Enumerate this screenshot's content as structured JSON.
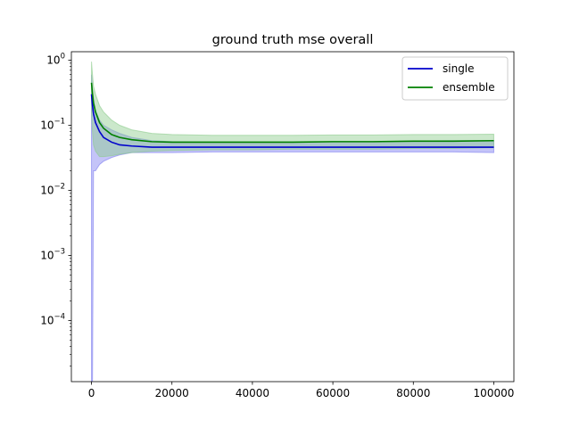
{
  "chart_data": {
    "type": "line",
    "title": "ground truth mse overall",
    "xlabel": "",
    "ylabel": "",
    "xscale": "linear",
    "yscale": "log",
    "xlim": [
      -5000,
      105000
    ],
    "ylim": [
      1.15e-05,
      1.35
    ],
    "grid": false,
    "legend_position": "upper right",
    "x_ticks": [
      0,
      20000,
      40000,
      60000,
      80000,
      100000
    ],
    "x_tick_labels": [
      "0",
      "20000",
      "40000",
      "60000",
      "80000",
      "100000"
    ],
    "y_ticks": [
      0.0001,
      0.001,
      0.01,
      0.1,
      1
    ],
    "y_tick_labels": [
      {
        "base": "10",
        "exp": "−4"
      },
      {
        "base": "10",
        "exp": "−3"
      },
      {
        "base": "10",
        "exp": "−2"
      },
      {
        "base": "10",
        "exp": "−1"
      },
      {
        "base": "10",
        "exp": "0"
      }
    ],
    "x": [
      0,
      250,
      500,
      1000,
      2000,
      3000,
      5000,
      7000,
      10000,
      15000,
      20000,
      30000,
      40000,
      50000,
      60000,
      70000,
      80000,
      90000,
      100000
    ],
    "series": [
      {
        "name": "single",
        "color": "#0000cc",
        "band_color": "#7d7df0",
        "values": [
          0.3,
          0.2,
          0.15,
          0.11,
          0.08,
          0.065,
          0.055,
          0.05,
          0.048,
          0.046,
          0.046,
          0.046,
          0.046,
          0.046,
          0.046,
          0.046,
          0.046,
          0.046,
          0.046
        ],
        "lower": [
          1.15e-05,
          1.15e-05,
          0.02,
          0.02,
          0.025,
          0.028,
          0.032,
          0.035,
          0.038,
          0.038,
          0.038,
          0.039,
          0.039,
          0.039,
          0.039,
          0.039,
          0.039,
          0.039,
          0.038
        ],
        "upper": [
          0.6,
          0.35,
          0.25,
          0.17,
          0.12,
          0.1,
          0.085,
          0.075,
          0.065,
          0.058,
          0.056,
          0.055,
          0.055,
          0.055,
          0.056,
          0.056,
          0.057,
          0.058,
          0.058
        ]
      },
      {
        "name": "ensemble",
        "color": "#008000",
        "band_color": "#8ccc8c",
        "values": [
          0.45,
          0.3,
          0.22,
          0.16,
          0.11,
          0.09,
          0.072,
          0.065,
          0.06,
          0.056,
          0.055,
          0.055,
          0.055,
          0.055,
          0.056,
          0.056,
          0.057,
          0.057,
          0.058
        ],
        "lower": [
          0.15,
          0.08,
          0.05,
          0.04,
          0.033,
          0.033,
          0.034,
          0.036,
          0.038,
          0.04,
          0.041,
          0.042,
          0.042,
          0.043,
          0.043,
          0.043,
          0.044,
          0.044,
          0.045
        ],
        "upper": [
          0.95,
          0.6,
          0.4,
          0.3,
          0.2,
          0.16,
          0.12,
          0.1,
          0.085,
          0.075,
          0.072,
          0.07,
          0.07,
          0.07,
          0.071,
          0.071,
          0.072,
          0.072,
          0.073
        ]
      }
    ]
  }
}
